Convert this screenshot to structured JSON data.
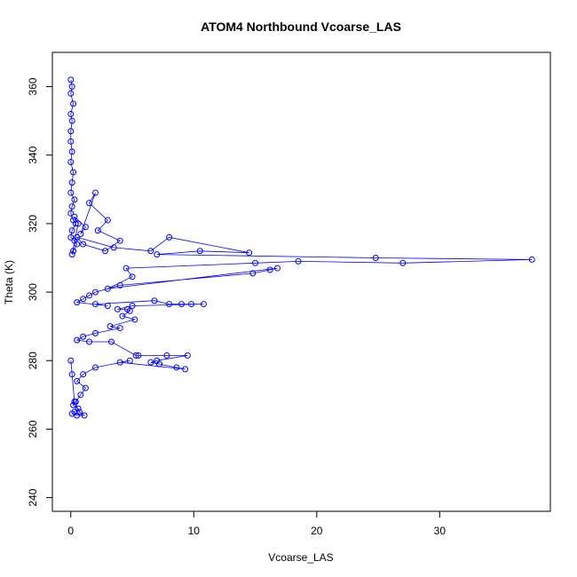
{
  "chart_data": {
    "type": "line",
    "title": "ATOM4 Northbound Vcoarse_LAS",
    "xlabel": "Vcoarse_LAS",
    "ylabel": "Theta (K)",
    "xlim": [
      -1.5,
      39.0
    ],
    "ylim": [
      236.0,
      370.0
    ],
    "x_ticks": [
      0,
      10,
      20,
      30
    ],
    "y_ticks": [
      240,
      260,
      280,
      300,
      320,
      340,
      360
    ],
    "grid": false,
    "legend": "none",
    "series": [
      {
        "color": "#0000ff",
        "marker": "open-circle",
        "x": [
          0.0,
          0.1,
          0.0,
          0.2,
          0.0,
          0.1,
          0.0,
          0.0,
          0.1,
          0.0,
          0.2,
          0.1,
          0.0,
          0.3,
          0.1,
          0.0,
          0.2,
          0.4,
          0.1,
          0.0,
          0.3,
          0.5,
          0.2,
          0.1,
          0.6,
          0.3,
          1.2,
          0.8,
          2.0,
          1.5,
          3.0,
          2.2,
          4.0,
          2.8,
          1.0,
          0.5,
          3.5,
          6.5,
          8.0,
          14.5,
          10.5,
          7.0,
          24.8,
          37.5,
          27.0,
          18.5,
          15.0,
          4.5,
          5.0,
          3.0,
          16.8,
          16.2,
          14.8,
          4.0,
          2.0,
          1.5,
          1.0,
          0.5,
          3.0,
          2.0,
          6.8,
          8.0,
          9.0,
          9.8,
          10.8,
          5.0,
          3.8,
          4.6,
          4.8,
          4.2,
          5.2,
          3.2,
          4.0,
          2.0,
          1.0,
          0.5,
          1.5,
          3.3,
          5.3,
          5.5,
          7.8,
          9.5,
          7.0,
          6.5,
          7.2,
          8.6,
          9.3,
          4.0,
          4.8,
          2.0,
          1.0,
          0.5,
          1.2,
          0.8,
          0.4,
          0.2,
          0.6,
          0.3,
          0.1,
          0.5,
          1.1,
          0.7,
          0.3,
          0.1,
          0.0
        ],
        "y": [
          362.0,
          360.0,
          358.0,
          355.0,
          352.0,
          350.0,
          347.0,
          344.0,
          341.0,
          338.0,
          335.0,
          332.0,
          329.0,
          327.0,
          325.0,
          323.0,
          321.0,
          320.0,
          318.0,
          316.0,
          315.0,
          314.0,
          312.0,
          311.0,
          320.0,
          322.0,
          319.0,
          317.0,
          329.0,
          326.0,
          321.0,
          318.0,
          315.0,
          312.0,
          314.0,
          316.0,
          313.0,
          312.0,
          316.0,
          311.5,
          312.0,
          311.0,
          310.0,
          309.5,
          308.5,
          309.0,
          308.5,
          307.0,
          304.5,
          301.0,
          307.0,
          306.5,
          305.5,
          302.0,
          300.0,
          299.0,
          298.0,
          297.0,
          296.0,
          296.5,
          297.5,
          296.5,
          296.5,
          296.5,
          296.5,
          296.0,
          295.0,
          295.0,
          294.5,
          293.0,
          292.0,
          290.0,
          289.5,
          288.0,
          287.0,
          286.0,
          285.5,
          285.5,
          281.5,
          281.5,
          281.5,
          281.5,
          280.0,
          279.5,
          279.0,
          278.0,
          277.5,
          279.5,
          280.0,
          278.0,
          276.0,
          274.0,
          272.0,
          270.0,
          268.0,
          267.0,
          266.0,
          265.0,
          264.5,
          264.0,
          264.0,
          265.0,
          268.0,
          276.0,
          280.0
        ]
      }
    ]
  }
}
